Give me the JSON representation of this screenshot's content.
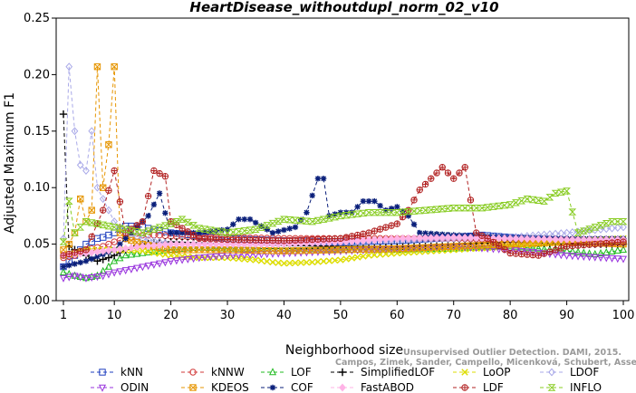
{
  "chart_data": {
    "type": "line",
    "title": "HeartDisease_withoutdupl_norm_02_v10",
    "xlabel": "Neighborhood size",
    "ylabel": "Adjusted Maximum F1",
    "xlim": [
      1,
      100
    ],
    "ylim": [
      0,
      0.25
    ],
    "xticks": [
      1,
      10,
      20,
      30,
      40,
      50,
      60,
      70,
      80,
      90,
      100
    ],
    "yticks": [
      "0.00",
      "0.05",
      "0.10",
      "0.15",
      "0.20",
      "0.25"
    ],
    "grid": false,
    "legend_position": "bottom",
    "watermark": [
      "Unsupervised Outlier Detection. DAMI, 2015.",
      "Campos, Zimek, Sander, Campello, Micenková, Schubert, Assent, Houle"
    ],
    "series": [
      {
        "name": "kNN",
        "color": "#1f3fbf",
        "marker": "square",
        "points": [
          [
            1,
            0.03
          ],
          [
            2,
            0.035
          ],
          [
            3,
            0.04
          ],
          [
            4,
            0.045
          ],
          [
            5,
            0.05
          ],
          [
            6,
            0.052
          ],
          [
            7,
            0.055
          ],
          [
            8,
            0.056
          ],
          [
            9,
            0.058
          ],
          [
            10,
            0.06
          ],
          [
            11,
            0.063
          ],
          [
            12,
            0.066
          ],
          [
            13,
            0.066
          ],
          [
            15,
            0.065
          ],
          [
            18,
            0.062
          ],
          [
            20,
            0.06
          ],
          [
            25,
            0.057
          ],
          [
            30,
            0.055
          ],
          [
            40,
            0.053
          ],
          [
            50,
            0.052
          ],
          [
            60,
            0.053
          ],
          [
            70,
            0.056
          ],
          [
            75,
            0.058
          ],
          [
            80,
            0.056
          ],
          [
            90,
            0.053
          ],
          [
            100,
            0.052
          ]
        ]
      },
      {
        "name": "kNNW",
        "color": "#d23a3a",
        "marker": "circle",
        "points": [
          [
            1,
            0.038
          ],
          [
            3,
            0.04
          ],
          [
            5,
            0.045
          ],
          [
            8,
            0.048
          ],
          [
            10,
            0.052
          ],
          [
            13,
            0.056
          ],
          [
            15,
            0.058
          ],
          [
            18,
            0.058
          ],
          [
            20,
            0.057
          ],
          [
            25,
            0.056
          ],
          [
            30,
            0.056
          ],
          [
            40,
            0.055
          ],
          [
            50,
            0.055
          ],
          [
            60,
            0.055
          ],
          [
            70,
            0.055
          ],
          [
            80,
            0.054
          ],
          [
            90,
            0.054
          ],
          [
            100,
            0.054
          ]
        ]
      },
      {
        "name": "LOF",
        "color": "#22bb22",
        "marker": "triangle-up",
        "points": [
          [
            1,
            0.025
          ],
          [
            3,
            0.022
          ],
          [
            5,
            0.02
          ],
          [
            7,
            0.022
          ],
          [
            9,
            0.03
          ],
          [
            10,
            0.035
          ],
          [
            12,
            0.04
          ],
          [
            15,
            0.042
          ],
          [
            20,
            0.045
          ],
          [
            25,
            0.047
          ],
          [
            30,
            0.046
          ],
          [
            40,
            0.046
          ],
          [
            50,
            0.045
          ],
          [
            60,
            0.045
          ],
          [
            70,
            0.046
          ],
          [
            80,
            0.048
          ],
          [
            90,
            0.044
          ],
          [
            95,
            0.041
          ],
          [
            100,
            0.045
          ]
        ]
      },
      {
        "name": "SimplifiedLOF",
        "color": "#000000",
        "marker": "plus",
        "points": [
          [
            1,
            0.165
          ],
          [
            2,
            0.048
          ],
          [
            3,
            0.045
          ],
          [
            5,
            0.04
          ],
          [
            7,
            0.035
          ],
          [
            9,
            0.038
          ],
          [
            10,
            0.04
          ],
          [
            12,
            0.045
          ],
          [
            15,
            0.05
          ],
          [
            20,
            0.052
          ],
          [
            30,
            0.05
          ],
          [
            40,
            0.049
          ],
          [
            50,
            0.048
          ],
          [
            60,
            0.048
          ],
          [
            70,
            0.05
          ],
          [
            80,
            0.052
          ],
          [
            90,
            0.05
          ],
          [
            100,
            0.05
          ]
        ]
      },
      {
        "name": "LoOP",
        "color": "#dddd00",
        "marker": "x",
        "points": [
          [
            1,
            0.04
          ],
          [
            3,
            0.042
          ],
          [
            5,
            0.045
          ],
          [
            10,
            0.045
          ],
          [
            15,
            0.044
          ],
          [
            20,
            0.04
          ],
          [
            25,
            0.038
          ],
          [
            30,
            0.038
          ],
          [
            35,
            0.036
          ],
          [
            38,
            0.034
          ],
          [
            40,
            0.033
          ],
          [
            45,
            0.034
          ],
          [
            50,
            0.036
          ],
          [
            55,
            0.04
          ],
          [
            60,
            0.042
          ],
          [
            70,
            0.045
          ],
          [
            80,
            0.048
          ],
          [
            90,
            0.052
          ],
          [
            100,
            0.055
          ]
        ]
      },
      {
        "name": "LDOF",
        "color": "#a9a9e8",
        "marker": "diamond",
        "points": [
          [
            1,
            0.055
          ],
          [
            2,
            0.207
          ],
          [
            3,
            0.15
          ],
          [
            4,
            0.12
          ],
          [
            5,
            0.115
          ],
          [
            6,
            0.15
          ],
          [
            7,
            0.1
          ],
          [
            8,
            0.09
          ],
          [
            9,
            0.08
          ],
          [
            10,
            0.07
          ],
          [
            12,
            0.06
          ],
          [
            15,
            0.055
          ],
          [
            20,
            0.05
          ],
          [
            30,
            0.05
          ],
          [
            40,
            0.05
          ],
          [
            50,
            0.052
          ],
          [
            60,
            0.054
          ],
          [
            70,
            0.055
          ],
          [
            80,
            0.056
          ],
          [
            90,
            0.06
          ],
          [
            100,
            0.065
          ]
        ]
      },
      {
        "name": "ODIN",
        "color": "#9933dd",
        "marker": "triangle-down",
        "points": [
          [
            1,
            0.02
          ],
          [
            3,
            0.022
          ],
          [
            5,
            0.02
          ],
          [
            8,
            0.022
          ],
          [
            10,
            0.025
          ],
          [
            15,
            0.03
          ],
          [
            20,
            0.035
          ],
          [
            25,
            0.038
          ],
          [
            30,
            0.04
          ],
          [
            40,
            0.042
          ],
          [
            50,
            0.044
          ],
          [
            60,
            0.046
          ],
          [
            70,
            0.048
          ],
          [
            80,
            0.045
          ],
          [
            90,
            0.04
          ],
          [
            100,
            0.037
          ]
        ]
      },
      {
        "name": "KDEOS",
        "color": "#e69500",
        "marker": "square-x",
        "points": [
          [
            1,
            0.045
          ],
          [
            2,
            0.05
          ],
          [
            3,
            0.06
          ],
          [
            4,
            0.09
          ],
          [
            5,
            0.07
          ],
          [
            6,
            0.08
          ],
          [
            7,
            0.207
          ],
          [
            8,
            0.1
          ],
          [
            9,
            0.138
          ],
          [
            10,
            0.207
          ],
          [
            11,
            0.06
          ],
          [
            12,
            0.055
          ],
          [
            15,
            0.05
          ],
          [
            20,
            0.045
          ],
          [
            30,
            0.045
          ],
          [
            40,
            0.044
          ],
          [
            50,
            0.045
          ],
          [
            60,
            0.046
          ],
          [
            70,
            0.048
          ],
          [
            80,
            0.05
          ],
          [
            90,
            0.052
          ],
          [
            100,
            0.05
          ]
        ]
      },
      {
        "name": "COF",
        "color": "#0a1f7a",
        "marker": "asterisk",
        "points": [
          [
            1,
            0.03
          ],
          [
            5,
            0.035
          ],
          [
            10,
            0.045
          ],
          [
            14,
            0.065
          ],
          [
            16,
            0.075
          ],
          [
            18,
            0.095
          ],
          [
            20,
            0.06
          ],
          [
            25,
            0.06
          ],
          [
            30,
            0.063
          ],
          [
            32,
            0.072
          ],
          [
            34,
            0.072
          ],
          [
            38,
            0.06
          ],
          [
            42,
            0.065
          ],
          [
            44,
            0.078
          ],
          [
            46,
            0.108
          ],
          [
            47,
            0.108
          ],
          [
            48,
            0.075
          ],
          [
            50,
            0.078
          ],
          [
            52,
            0.078
          ],
          [
            54,
            0.088
          ],
          [
            56,
            0.088
          ],
          [
            58,
            0.08
          ],
          [
            60,
            0.083
          ],
          [
            62,
            0.075
          ],
          [
            64,
            0.06
          ],
          [
            70,
            0.058
          ],
          [
            80,
            0.056
          ],
          [
            90,
            0.055
          ],
          [
            100,
            0.055
          ]
        ]
      },
      {
        "name": "FastABOD",
        "color": "#ffb3e6",
        "marker": "diamond-filled",
        "points": [
          [
            1,
            0.04
          ],
          [
            5,
            0.042
          ],
          [
            10,
            0.045
          ],
          [
            15,
            0.048
          ],
          [
            20,
            0.05
          ],
          [
            30,
            0.05
          ],
          [
            40,
            0.05
          ],
          [
            50,
            0.052
          ],
          [
            60,
            0.055
          ],
          [
            70,
            0.056
          ],
          [
            80,
            0.055
          ],
          [
            90,
            0.054
          ],
          [
            100,
            0.054
          ]
        ]
      },
      {
        "name": "LDF",
        "color": "#b22222",
        "marker": "circle-plus",
        "points": [
          [
            1,
            0.04
          ],
          [
            5,
            0.045
          ],
          [
            8,
            0.08
          ],
          [
            10,
            0.115
          ],
          [
            12,
            0.06
          ],
          [
            15,
            0.07
          ],
          [
            17,
            0.115
          ],
          [
            19,
            0.11
          ],
          [
            20,
            0.07
          ],
          [
            25,
            0.055
          ],
          [
            30,
            0.054
          ],
          [
            40,
            0.053
          ],
          [
            50,
            0.055
          ],
          [
            55,
            0.06
          ],
          [
            60,
            0.068
          ],
          [
            62,
            0.08
          ],
          [
            64,
            0.098
          ],
          [
            66,
            0.108
          ],
          [
            68,
            0.118
          ],
          [
            70,
            0.108
          ],
          [
            72,
            0.118
          ],
          [
            74,
            0.06
          ],
          [
            76,
            0.055
          ],
          [
            80,
            0.042
          ],
          [
            85,
            0.04
          ],
          [
            90,
            0.048
          ],
          [
            100,
            0.052
          ]
        ]
      },
      {
        "name": "INFLO",
        "color": "#88cc22",
        "marker": "hourglass",
        "points": [
          [
            1,
            0.052
          ],
          [
            2,
            0.088
          ],
          [
            3,
            0.06
          ],
          [
            5,
            0.07
          ],
          [
            10,
            0.065
          ],
          [
            15,
            0.06
          ],
          [
            20,
            0.068
          ],
          [
            22,
            0.072
          ],
          [
            25,
            0.064
          ],
          [
            30,
            0.06
          ],
          [
            35,
            0.063
          ],
          [
            40,
            0.072
          ],
          [
            45,
            0.07
          ],
          [
            50,
            0.075
          ],
          [
            55,
            0.078
          ],
          [
            60,
            0.078
          ],
          [
            65,
            0.08
          ],
          [
            70,
            0.082
          ],
          [
            75,
            0.082
          ],
          [
            80,
            0.085
          ],
          [
            83,
            0.09
          ],
          [
            86,
            0.088
          ],
          [
            88,
            0.095
          ],
          [
            90,
            0.097
          ],
          [
            92,
            0.06
          ],
          [
            95,
            0.065
          ],
          [
            98,
            0.07
          ],
          [
            100,
            0.07
          ]
        ]
      }
    ]
  }
}
